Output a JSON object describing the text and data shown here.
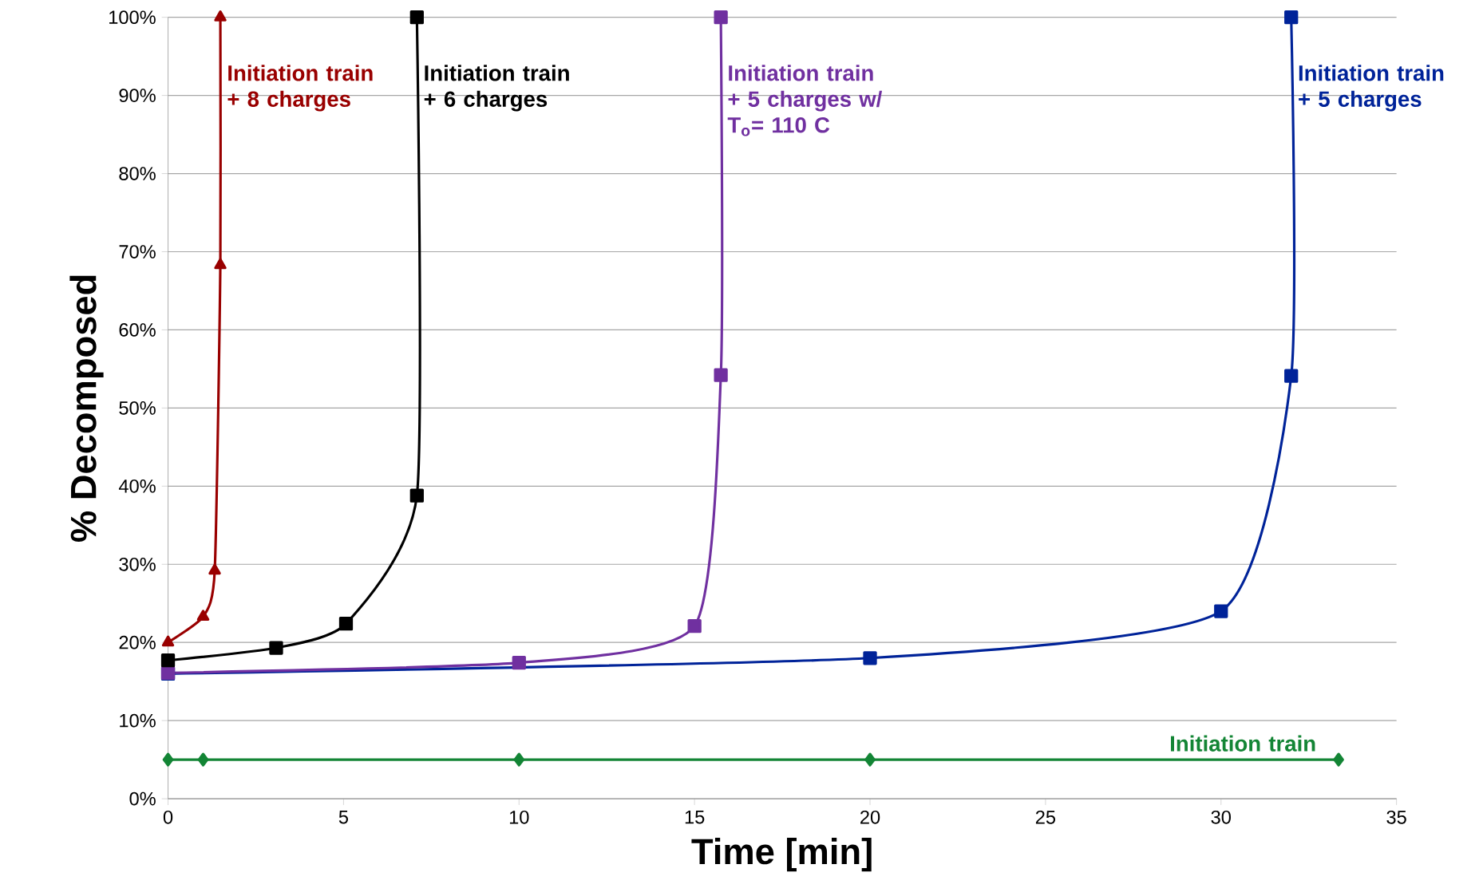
{
  "chart_data": {
    "type": "line",
    "xlabel": "Time [min]",
    "ylabel": "% Decomposed",
    "xlim": [
      0,
      35
    ],
    "xticks": [
      0,
      5,
      10,
      15,
      20,
      25,
      30,
      35
    ],
    "ylim": [
      0,
      100
    ],
    "yticks": [
      {
        "value": 0,
        "label": "0%"
      },
      {
        "value": 10,
        "label": "10%"
      },
      {
        "value": 20,
        "label": "20%"
      },
      {
        "value": 30,
        "label": "30%"
      },
      {
        "value": 40,
        "label": "40%"
      },
      {
        "value": 50,
        "label": "50%"
      },
      {
        "value": 60,
        "label": "60%"
      },
      {
        "value": 70,
        "label": "70%"
      },
      {
        "value": 80,
        "label": "80%"
      },
      {
        "value": 90,
        "label": "90%"
      },
      {
        "value": 100,
        "label": "100%"
      }
    ],
    "grid": "y",
    "series": [
      {
        "name": "Initiation train + 8 charges",
        "color": "#990000",
        "marker": "triangle",
        "x": [
          0,
          1,
          1.33,
          1.49,
          1.49
        ],
        "values": [
          20,
          23.3,
          29.2,
          68.3,
          100
        ]
      },
      {
        "name": "Initiation train + 6 charges",
        "color": "#000000",
        "marker": "square",
        "x": [
          0,
          3.08,
          5.07,
          7.09,
          7.09
        ],
        "values": [
          17.7,
          19.3,
          22.4,
          38.8,
          100
        ]
      },
      {
        "name": "Initiation train + 5 charges w/ T$_{o}$= 110 C",
        "color": "#7030a0",
        "marker": "square",
        "x": [
          0,
          10,
          15,
          15.75,
          15.75
        ],
        "values": [
          16.1,
          17.4,
          22.1,
          54.2,
          100
        ]
      },
      {
        "name": "Initiation train + 5 charges",
        "color": "#002399",
        "marker": "square",
        "x": [
          0,
          20,
          30,
          32,
          32
        ],
        "values": [
          16,
          18,
          24,
          54.1,
          100
        ]
      },
      {
        "name": "Initiation train",
        "color": "#138535",
        "marker": "diamond",
        "x": [
          0,
          1,
          10,
          20,
          33.35
        ],
        "values": [
          5,
          5,
          5,
          5,
          5
        ]
      }
    ]
  }
}
